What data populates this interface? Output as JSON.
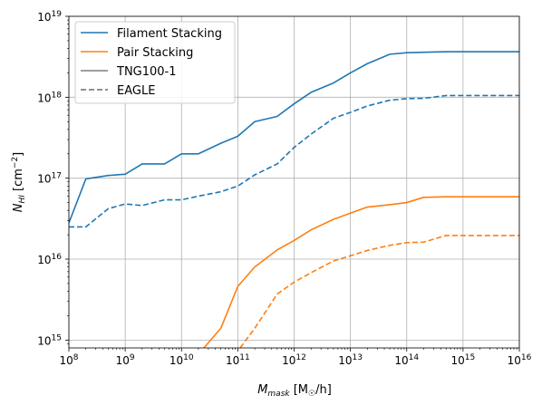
{
  "chart_data": {
    "type": "line",
    "xscale": "log",
    "yscale": "log",
    "xlim": [
      100000000.0,
      1e+16
    ],
    "ylim": [
      800000000000000.0,
      1e+19
    ],
    "xlabel": "M_mask [M☉/h]",
    "ylabel": "N_HI [cm^-2]",
    "grid": true,
    "legend_position": "top-left",
    "x_ticks": [
      {
        "value": 100000000.0,
        "base": "10",
        "exp": "8"
      },
      {
        "value": 1000000000.0,
        "base": "10",
        "exp": "9"
      },
      {
        "value": 10000000000.0,
        "base": "10",
        "exp": "10"
      },
      {
        "value": 100000000000.0,
        "base": "10",
        "exp": "11"
      },
      {
        "value": 1000000000000.0,
        "base": "10",
        "exp": "12"
      },
      {
        "value": 10000000000000.0,
        "base": "10",
        "exp": "13"
      },
      {
        "value": 100000000000000.0,
        "base": "10",
        "exp": "14"
      },
      {
        "value": 1000000000000000.0,
        "base": "10",
        "exp": "15"
      },
      {
        "value": 1e+16,
        "base": "10",
        "exp": "16"
      }
    ],
    "y_ticks": [
      {
        "value": 1000000000000000.0,
        "base": "10",
        "exp": "15"
      },
      {
        "value": 1e+16,
        "base": "10",
        "exp": "16"
      },
      {
        "value": 1e+17,
        "base": "10",
        "exp": "17"
      },
      {
        "value": 1e+18,
        "base": "10",
        "exp": "18"
      },
      {
        "value": 1e+19,
        "base": "10",
        "exp": "19"
      }
    ],
    "legend": [
      {
        "label": "Filament Stacking",
        "color": "#1f77b4",
        "dash": "solid"
      },
      {
        "label": "Pair Stacking",
        "color": "#ff7f0e",
        "dash": "solid"
      },
      {
        "label": "TNG100-1",
        "color": "#7f7f7f",
        "dash": "solid"
      },
      {
        "label": "EAGLE",
        "color": "#5f6f7f",
        "dash": "dashed"
      }
    ],
    "series": [
      {
        "group": "Filament Stacking",
        "sim": "TNG100-1",
        "color": "#1f77b4",
        "dash": "solid",
        "x": [
          100000000.0,
          200000000.0,
          500000000.0,
          1000000000.0,
          2000000000.0,
          5000000000.0,
          10000000000.0,
          20000000000.0,
          50000000000.0,
          100000000000.0,
          200000000000.0,
          500000000000.0,
          1000000000000.0,
          2000000000000.0,
          5000000000000.0,
          10000000000000.0,
          20000000000000.0,
          50000000000000.0,
          100000000000000.0,
          200000000000000.0,
          500000000000000.0,
          1000000000000000.0,
          2000000000000000.0,
          5000000000000000.0,
          1e+16
        ],
        "y": [
          2.8e+16,
          9.8e+16,
          1.08e+17,
          1.12e+17,
          1.5e+17,
          1.5e+17,
          2e+17,
          2e+17,
          2.7e+17,
          3.3e+17,
          5e+17,
          5.8e+17,
          8.3e+17,
          1.15e+18,
          1.5e+18,
          2e+18,
          2.6e+18,
          3.4e+18,
          3.55e+18,
          3.6e+18,
          3.65e+18,
          3.65e+18,
          3.65e+18,
          3.65e+18,
          3.65e+18
        ]
      },
      {
        "group": "Filament Stacking",
        "sim": "EAGLE",
        "color": "#1f77b4",
        "dash": "dashed",
        "x": [
          100000000.0,
          200000000.0,
          500000000.0,
          1000000000.0,
          2000000000.0,
          5000000000.0,
          10000000000.0,
          20000000000.0,
          50000000000.0,
          100000000000.0,
          200000000000.0,
          500000000000.0,
          1000000000000.0,
          2000000000000.0,
          5000000000000.0,
          10000000000000.0,
          20000000000000.0,
          50000000000000.0,
          100000000000000.0,
          200000000000000.0,
          500000000000000.0,
          1000000000000000.0,
          2000000000000000.0,
          5000000000000000.0,
          1e+16
        ],
        "y": [
          2.5e+16,
          2.5e+16,
          4.2e+16,
          4.8e+16,
          4.6e+16,
          5.4e+16,
          5.4e+16,
          6e+16,
          6.8e+16,
          8e+16,
          1.1e+17,
          1.5e+17,
          2.4e+17,
          3.5e+17,
          5.5e+17,
          6.5e+17,
          7.8e+17,
          9.2e+17,
          9.6e+17,
          9.7e+17,
          1.05e+18,
          1.05e+18,
          1.05e+18,
          1.05e+18,
          1.05e+18
        ]
      },
      {
        "group": "Pair Stacking",
        "sim": "TNG100-1",
        "color": "#ff7f0e",
        "dash": "solid",
        "x": [
          25000000000.0,
          50000000000.0,
          100000000000.0,
          200000000000.0,
          500000000000.0,
          1000000000000.0,
          2000000000000.0,
          5000000000000.0,
          10000000000000.0,
          20000000000000.0,
          50000000000000.0,
          100000000000000.0,
          200000000000000.0,
          500000000000000.0,
          1000000000000000.0,
          2000000000000000.0,
          5000000000000000.0,
          1e+16
        ],
        "y": [
          800000000000000.0,
          1400000000000000.0,
          4600000000000000.0,
          8000000000000000.0,
          1.3e+16,
          1.7e+16,
          2.3e+16,
          3.1e+16,
          3.7e+16,
          4.4e+16,
          4.7e+16,
          5e+16,
          5.8e+16,
          5.9e+16,
          5.9e+16,
          5.9e+16,
          5.9e+16,
          5.9e+16
        ]
      },
      {
        "group": "Pair Stacking",
        "sim": "EAGLE",
        "color": "#ff7f0e",
        "dash": "dashed",
        "x": [
          110000000000.0,
          200000000000.0,
          500000000000.0,
          1000000000000.0,
          2000000000000.0,
          5000000000000.0,
          10000000000000.0,
          20000000000000.0,
          50000000000000.0,
          100000000000000.0,
          200000000000000.0,
          500000000000000.0,
          1000000000000000.0,
          2000000000000000.0,
          5000000000000000.0,
          1e+16
        ],
        "y": [
          800000000000000.0,
          1400000000000000.0,
          3700000000000000.0,
          5200000000000000.0,
          6800000000000000.0,
          9500000000000000.0,
          1.1e+16,
          1.28e+16,
          1.48e+16,
          1.6e+16,
          1.62e+16,
          1.96e+16,
          1.96e+16,
          1.96e+16,
          1.96e+16,
          1.96e+16
        ]
      }
    ]
  }
}
